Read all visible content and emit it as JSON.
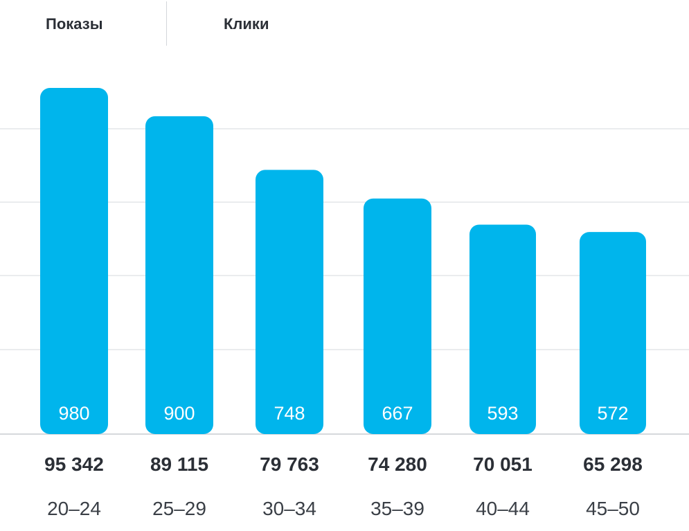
{
  "tabs": [
    {
      "label": "Показы"
    },
    {
      "label": "Клики"
    }
  ],
  "colors": {
    "bar": "#00b5ec",
    "grid": "#d5d8dc",
    "axis": "#c9ccd0"
  },
  "chart_data": {
    "type": "bar",
    "categories": [
      "20–24",
      "25–29",
      "30–34",
      "35–39",
      "40–44",
      "45–50"
    ],
    "values": [
      980,
      900,
      748,
      667,
      593,
      572
    ],
    "totals": [
      "95 342",
      "89 115",
      "79 763",
      "74 280",
      "70 051",
      "65 298"
    ],
    "grid": true,
    "legend": "none"
  }
}
